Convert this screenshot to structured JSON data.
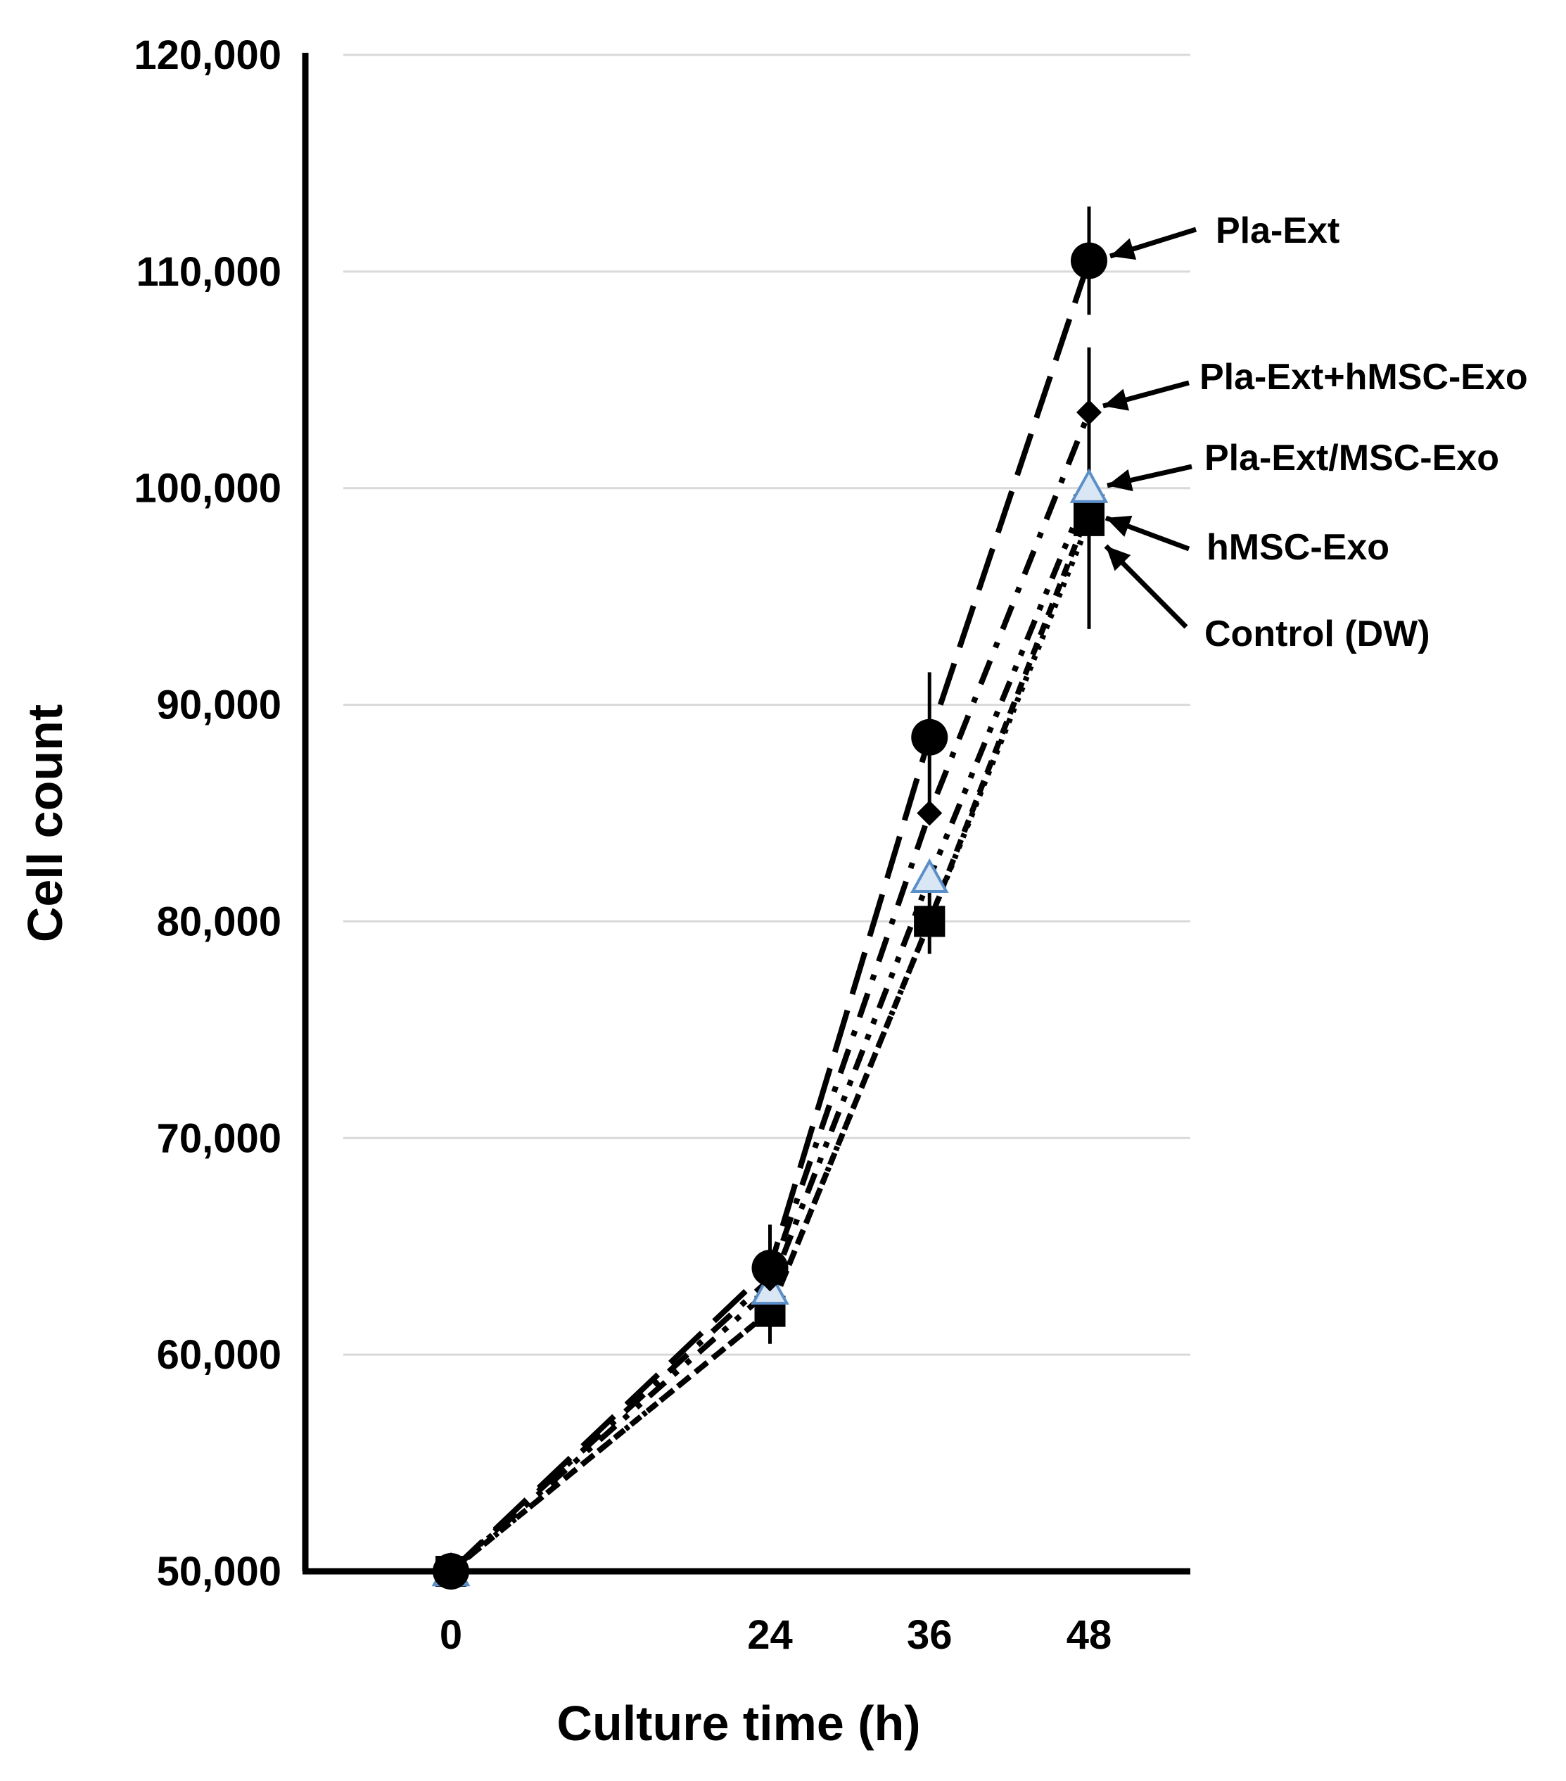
{
  "chart_data": {
    "type": "line",
    "title": "",
    "xlabel": "Culture time (h)",
    "ylabel": "Cell count",
    "categories": [
      "0",
      "24",
      "36",
      "48"
    ],
    "x": [
      0,
      24,
      36,
      48
    ],
    "ylim": [
      50000,
      120000
    ],
    "y_ticks": [
      "50,000",
      "60,000",
      "70,000",
      "80,000",
      "90,000",
      "100,000",
      "110,000",
      "120,000"
    ],
    "grid": "horizontal",
    "series": [
      {
        "name": "Pla-Ext",
        "marker": "circle",
        "dash": "long-dash",
        "values": [
          50000,
          64000,
          88500,
          110500
        ],
        "error": [
          0,
          2000,
          3000,
          2500
        ]
      },
      {
        "name": "Pla-Ext+hMSC-Exo",
        "marker": "diamond",
        "dash": "dash-dot",
        "values": [
          50000,
          63500,
          85000,
          103500
        ],
        "error": [
          0,
          0,
          0,
          3000
        ]
      },
      {
        "name": "Pla-Ext/MSC-Exo",
        "marker": "triangle",
        "dash": "dash-dot-dot",
        "values": [
          50000,
          63000,
          82000,
          100000
        ],
        "error": [
          0,
          0,
          0,
          0
        ]
      },
      {
        "name": "hMSC-Exo",
        "marker": "square",
        "dash": "short-dash",
        "values": [
          50000,
          62000,
          80000,
          99000
        ],
        "error": [
          0,
          1500,
          1500,
          0
        ]
      },
      {
        "name": "Control (DW)",
        "marker": "square",
        "dash": "dotted",
        "values": [
          50000,
          62000,
          80000,
          98500
        ],
        "error": [
          0,
          0,
          0,
          5000
        ]
      }
    ],
    "colors": {
      "ink": "#000000",
      "grid": "#d9d9d9",
      "triangle_edge": "#5b8fc9"
    }
  }
}
